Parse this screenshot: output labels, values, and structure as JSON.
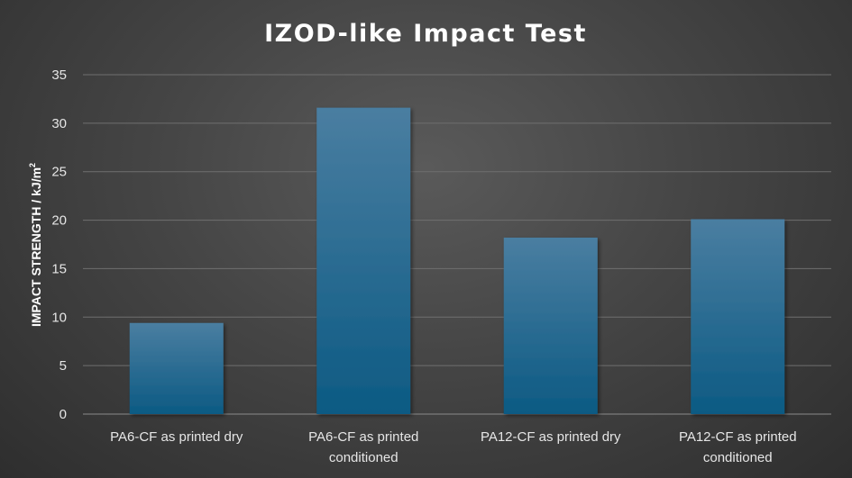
{
  "chart_data": {
    "type": "bar",
    "title": "IZOD-like Impact Test",
    "ylabel": "IMPACT STRENGTH / kJ/m",
    "ylabel_superscript": "2",
    "categories": [
      [
        "PA6-CF as printed dry"
      ],
      [
        "PA6-CF as printed",
        "conditioned"
      ],
      [
        "PA12-CF as printed dry"
      ],
      [
        "PA12-CF as printed",
        "conditioned"
      ]
    ],
    "values": [
      9.4,
      31.6,
      18.2,
      20.1
    ],
    "ylim": [
      0,
      35
    ],
    "yticks": [
      0,
      5,
      10,
      15,
      20,
      25,
      30,
      35
    ],
    "grid": true,
    "colors": {
      "bar_top": "#4a7ea1",
      "bar_bottom": "#0c5a83"
    }
  }
}
